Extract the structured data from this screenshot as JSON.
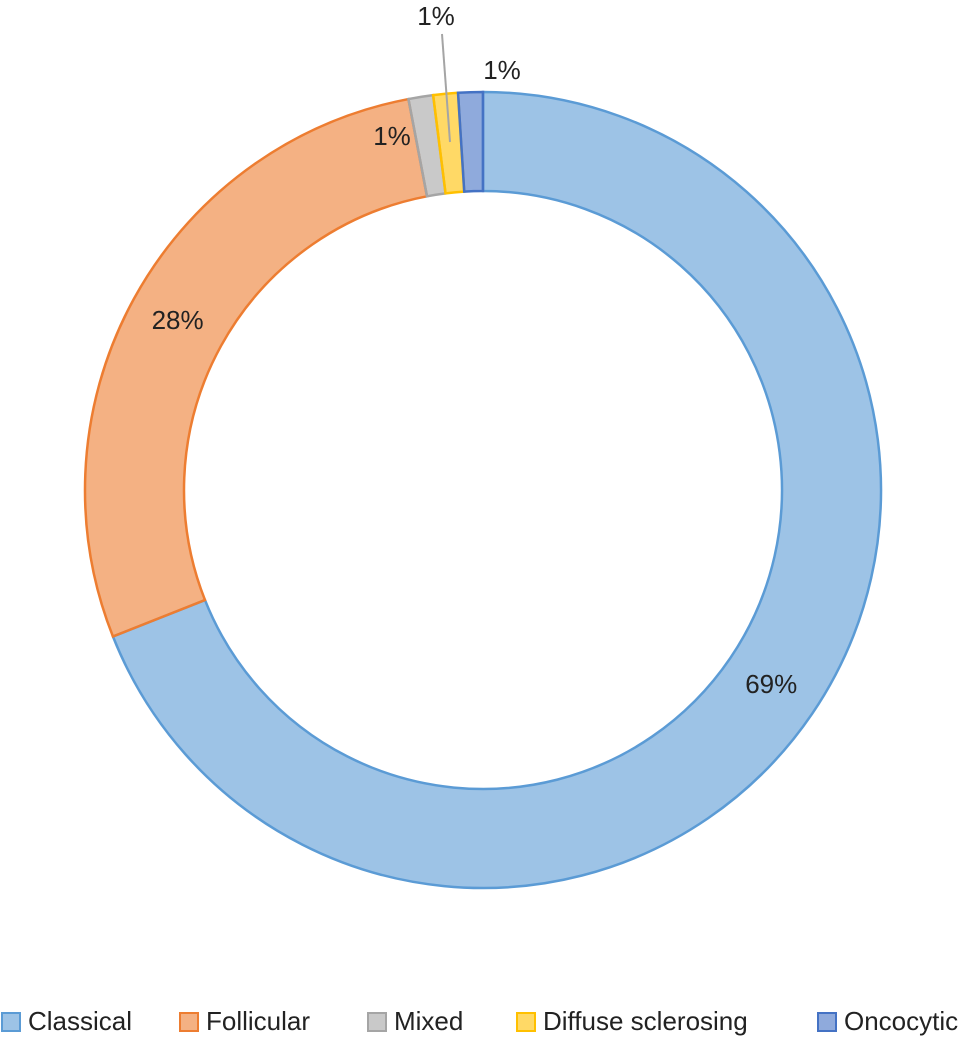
{
  "chart_data": {
    "type": "donut",
    "categories": [
      "Classical",
      "Follicular",
      "Mixed",
      "Diffuse sclerosing",
      "Oncocytic"
    ],
    "values": [
      69,
      28,
      1,
      1,
      1
    ],
    "value_labels": [
      "69%",
      "28%",
      "1%",
      "1%",
      "1%"
    ],
    "colors": [
      "#5b9bd5",
      "#ed7d31",
      "#a5a5a5",
      "#ffc000",
      "#4472c4"
    ],
    "legend": "bottom"
  }
}
